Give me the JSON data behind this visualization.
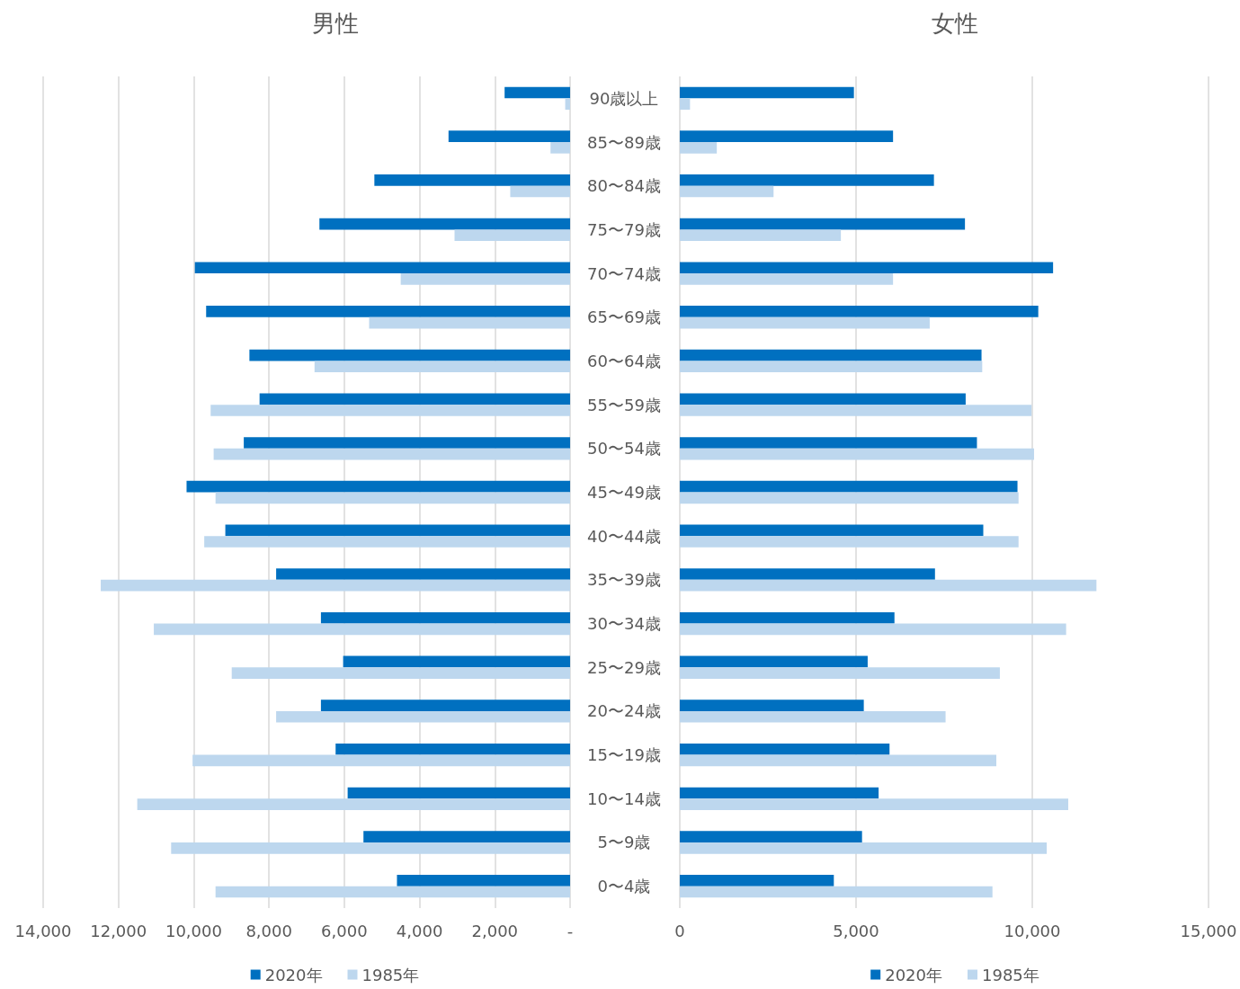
{
  "chart_data": [
    {
      "type": "bar",
      "orientation": "horizontal",
      "title": "男性",
      "categories": [
        "90歳以上",
        "85〜89歳",
        "80〜84歳",
        "75〜79歳",
        "70〜74歳",
        "65〜69歳",
        "60〜64歳",
        "55〜59歳",
        "50〜54歳",
        "45〜49歳",
        "40〜44歳",
        "35〜39歳",
        "30〜34歳",
        "25〜29歳",
        "20〜24歳",
        "15〜19歳",
        "10〜14歳",
        "5〜9歳",
        "0〜4歳"
      ],
      "series": [
        {
          "name": "2020年",
          "color": "#0070c0",
          "values": [
            1740,
            3230,
            5200,
            6660,
            9970,
            9670,
            8520,
            8250,
            8670,
            10190,
            9160,
            7810,
            6620,
            6030,
            6620,
            6230,
            5910,
            5490,
            4600
          ]
        },
        {
          "name": "1985年",
          "color": "#bdd7ee",
          "values": [
            130,
            520,
            1590,
            3070,
            4500,
            5340,
            6790,
            9550,
            9470,
            9420,
            9720,
            12470,
            11060,
            8990,
            7810,
            10030,
            11500,
            10600,
            9420
          ]
        }
      ],
      "xlim": [
        14000,
        0
      ],
      "xticks": [
        {
          "value": 14000,
          "label": "14,000"
        },
        {
          "value": 12000,
          "label": "12,000"
        },
        {
          "value": 10000,
          "label": "10,000"
        },
        {
          "value": 8000,
          "label": "8,000"
        },
        {
          "value": 6000,
          "label": "6,000"
        },
        {
          "value": 4000,
          "label": "4,000"
        },
        {
          "value": 2000,
          "label": "2,000"
        },
        {
          "value": 0,
          "label": "-"
        }
      ],
      "grid": "x",
      "legend": "bottom"
    },
    {
      "type": "bar",
      "orientation": "horizontal",
      "title": "女性",
      "categories": [
        null,
        null,
        null,
        null,
        null,
        null,
        null,
        null,
        null,
        null,
        null,
        null,
        null,
        null,
        null,
        null,
        null,
        null,
        null
      ],
      "series": [
        {
          "name": "2020年",
          "color": "#0070c0",
          "values": [
            4940,
            6050,
            7210,
            8090,
            10590,
            10170,
            8560,
            8110,
            8430,
            9580,
            8610,
            7240,
            6090,
            5330,
            5220,
            5950,
            5640,
            5170,
            4370
          ]
        },
        {
          "name": "1985年",
          "color": "#bdd7ee",
          "values": [
            290,
            1050,
            2660,
            4570,
            6050,
            7090,
            8580,
            9980,
            10050,
            9610,
            9610,
            11820,
            10960,
            9080,
            7540,
            8980,
            11020,
            10410,
            8870
          ]
        }
      ],
      "xlim": [
        0,
        15000
      ],
      "xticks": [
        0,
        {
          "value": 5000,
          "label": "5,000"
        },
        {
          "value": 10000,
          "label": "10,000"
        },
        {
          "value": 15000,
          "label": "15,000"
        }
      ],
      "grid": "x",
      "legend": "bottom",
      "tick_labels": "x"
    }
  ]
}
